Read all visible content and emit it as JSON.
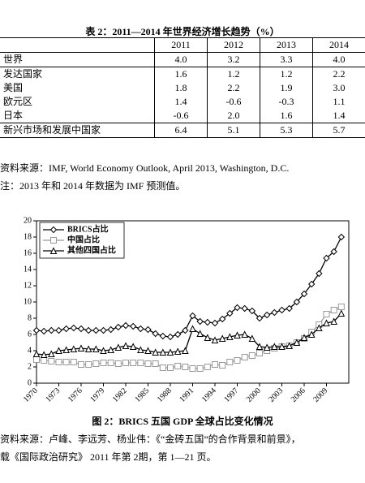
{
  "table": {
    "title": "表 2：2011—2014 年世界经济增长趋势（%）",
    "columns": [
      "2011",
      "2012",
      "2013",
      "2014"
    ],
    "rows": [
      {
        "label": "世界",
        "values": [
          "4.0",
          "3.2",
          "3.3",
          "4.0"
        ]
      },
      {
        "label": "发达国家",
        "values": [
          "1.6",
          "1.2",
          "1.2",
          "2.2"
        ]
      },
      {
        "label": "美国",
        "values": [
          "1.8",
          "2.2",
          "1.9",
          "3.0"
        ]
      },
      {
        "label": "欧元区",
        "values": [
          "1.4",
          "-0.6",
          "-0.3",
          "1.1"
        ]
      },
      {
        "label": "日本",
        "values": [
          "-0.6",
          "2.0",
          "1.6",
          "1.4"
        ]
      },
      {
        "label": "新兴市场和发展中国家",
        "values": [
          "6.4",
          "5.1",
          "5.3",
          "5.7"
        ]
      }
    ],
    "source": "资料来源：IMF, World Economy Outlook, April 2013, Washington, D.C.",
    "note": "注：2013 年和 2014 年数据为 IMF 预测值。"
  },
  "chart_data": {
    "type": "line",
    "x": [
      1970,
      1971,
      1972,
      1973,
      1974,
      1975,
      1976,
      1977,
      1978,
      1979,
      1980,
      1981,
      1982,
      1983,
      1984,
      1985,
      1986,
      1987,
      1988,
      1989,
      1990,
      1991,
      1992,
      1993,
      1994,
      1995,
      1996,
      1997,
      1998,
      1999,
      2000,
      2001,
      2002,
      2003,
      2004,
      2005,
      2006,
      2007,
      2008,
      2009,
      2010,
      2011
    ],
    "series": [
      {
        "name": "BRICS占比",
        "color": "#000000",
        "marker": "diamond",
        "values": [
          6.5,
          6.4,
          6.5,
          6.5,
          6.7,
          6.8,
          6.7,
          6.5,
          6.5,
          6.5,
          6.6,
          6.9,
          7.1,
          7.0,
          6.7,
          6.6,
          6.1,
          5.8,
          5.7,
          6.0,
          6.5,
          8.3,
          7.6,
          7.5,
          7.4,
          7.9,
          8.6,
          9.3,
          9.2,
          8.9,
          8.0,
          8.4,
          8.7,
          9.0,
          9.2,
          10.0,
          11.0,
          12.2,
          13.5,
          15.4,
          16.2,
          18.0
        ]
      },
      {
        "name": "中国占比",
        "color": "#999999",
        "marker": "square",
        "values": [
          2.9,
          2.8,
          2.7,
          2.6,
          2.6,
          2.6,
          2.3,
          2.3,
          2.4,
          2.5,
          2.5,
          2.4,
          2.5,
          2.5,
          2.5,
          2.4,
          2.4,
          1.9,
          1.9,
          2.1,
          2.0,
          1.8,
          1.8,
          2.0,
          2.3,
          2.2,
          2.6,
          2.8,
          3.2,
          3.4,
          3.7,
          4.0,
          4.3,
          4.5,
          4.6,
          5.0,
          5.5,
          6.3,
          7.2,
          8.5,
          9.0,
          9.4
        ]
      },
      {
        "name": "其他四国占比",
        "color": "#000000",
        "marker": "triangle",
        "values": [
          3.6,
          3.5,
          3.6,
          4.0,
          4.1,
          4.2,
          4.3,
          4.2,
          4.2,
          4.0,
          4.1,
          4.4,
          4.6,
          4.5,
          4.1,
          4.0,
          3.8,
          3.8,
          3.8,
          3.9,
          4.0,
          6.7,
          6.1,
          5.6,
          5.3,
          5.5,
          5.7,
          5.9,
          6.0,
          5.5,
          4.5,
          4.4,
          4.5,
          4.5,
          4.6,
          5.0,
          5.6,
          6.0,
          6.8,
          7.4,
          7.6,
          8.6
        ]
      }
    ],
    "xlim": [
      1970,
      2012
    ],
    "xticks": [
      1970,
      1973,
      1976,
      1979,
      1982,
      1985,
      1988,
      1991,
      1994,
      1997,
      2000,
      2003,
      2006,
      2009
    ],
    "ylim": [
      0,
      20
    ],
    "yticks": [
      0,
      2,
      4,
      6,
      8,
      10,
      12,
      14,
      16,
      18,
      20
    ],
    "legend": "upper left",
    "caption": "图 2：BRICS 五国 GDP 全球占比变化情况",
    "source": [
      "资料来源：卢峰、李远芳、杨业伟：《“金砖五国”的合作背景和前景》，",
      "载《国际政治研究》 2011 年第 2期，第 1—21 页。"
    ]
  }
}
